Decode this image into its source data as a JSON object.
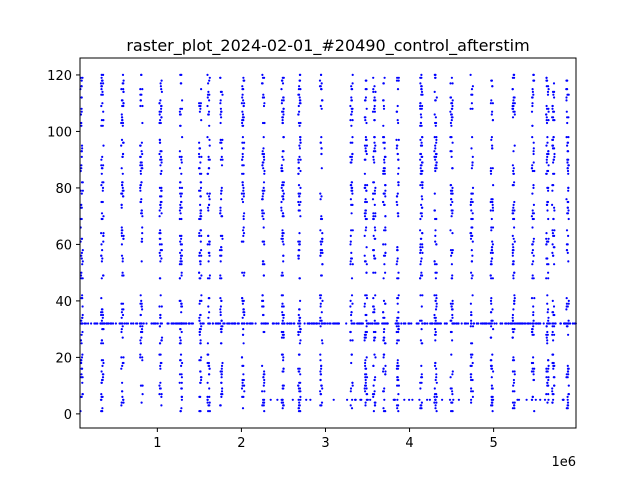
{
  "chart_data": {
    "type": "scatter",
    "title": "raster_plot_2024-02-01_#20490_control_afterstim",
    "xlabel": "",
    "ylabel": "",
    "x_offset_label": "1e6",
    "xlim": [
      80000,
      5980000
    ],
    "ylim": [
      -5,
      126
    ],
    "xticks": [
      1000000,
      2000000,
      3000000,
      4000000,
      5000000
    ],
    "xtick_labels": [
      "1",
      "2",
      "3",
      "4",
      "5"
    ],
    "yticks": [
      0,
      20,
      40,
      60,
      80,
      100,
      120
    ],
    "ytick_labels": [
      "0",
      "20",
      "40",
      "60",
      "80",
      "100",
      "120"
    ],
    "grid": false,
    "marker_color": "#0000ff",
    "burst_times": [
      100000,
      345000,
      585000,
      810000,
      1040000,
      1280000,
      1510000,
      1610000,
      1760000,
      2020000,
      2260000,
      2490000,
      2690000,
      2950000,
      3310000,
      3480000,
      3580000,
      3700000,
      3860000,
      4140000,
      4310000,
      4500000,
      4740000,
      4980000,
      5240000,
      5470000,
      5640000,
      5710000,
      5880000
    ],
    "active_channel_bands": [
      [
        1,
        21
      ],
      [
        25,
        42
      ],
      [
        48,
        50
      ],
      [
        53,
        66
      ],
      [
        69,
        82
      ],
      [
        85,
        98
      ],
      [
        102,
        120
      ]
    ],
    "tonic_channel": 32,
    "tonic_rate_spikes_per_1e6": 60
  }
}
